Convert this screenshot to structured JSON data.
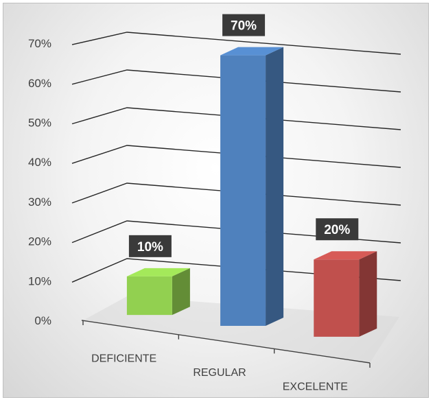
{
  "chart_data": {
    "type": "bar",
    "categories": [
      "DEFICIENTE",
      "REGULAR",
      "EXCELENTE"
    ],
    "values": [
      10,
      70,
      20
    ],
    "value_labels": [
      "10%",
      "70%",
      "20%"
    ],
    "colors": [
      "#92d050",
      "#4f81bd",
      "#c0504d"
    ],
    "y_ticks": [
      "0%",
      "10%",
      "20%",
      "30%",
      "40%",
      "50%",
      "60%",
      "70%"
    ],
    "ylim": [
      0,
      70
    ],
    "grid": true,
    "legend": "none",
    "style": "3d-column"
  }
}
